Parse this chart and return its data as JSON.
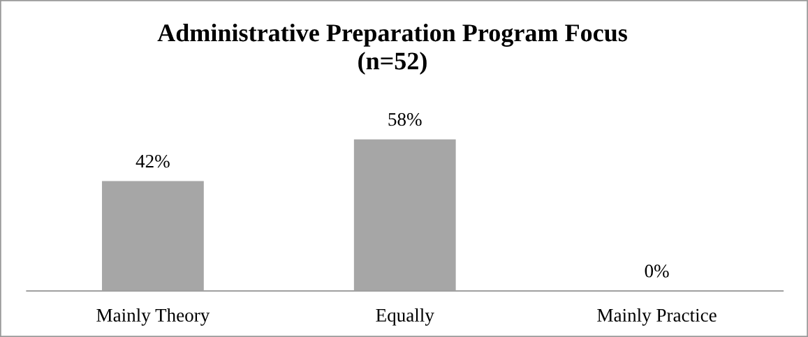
{
  "chart_data": {
    "type": "bar",
    "title": "Administrative Preparation Program Focus\n(n=52)",
    "categories": [
      "Mainly Theory",
      "Equally",
      "Mainly Practice"
    ],
    "values": [
      42,
      58,
      0
    ],
    "color": "#a6a6a6",
    "value_labels": [
      "42%",
      "58%",
      "0%"
    ],
    "tick_labels": "x"
  }
}
